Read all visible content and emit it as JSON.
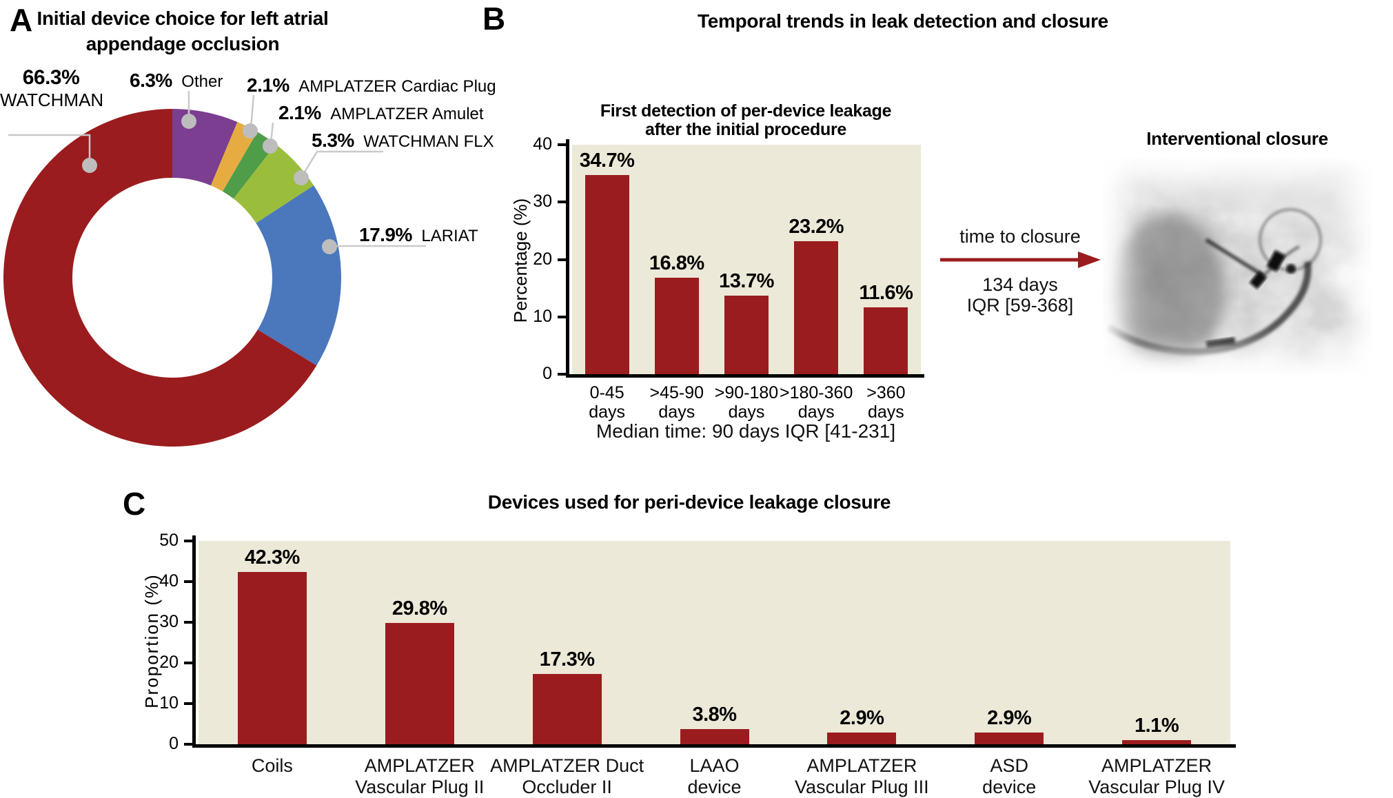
{
  "panelA": {
    "label": "A",
    "title_line1": "Initial device choice for left atrial",
    "title_line2": "appendage occlusion"
  },
  "panelB": {
    "label": "B",
    "title": "Temporal trends in leak detection and closure",
    "chart_title_line1": "First detection of per-device leakage",
    "chart_title_line2": "after the initial procedure",
    "ylabel": "Percentage (%)",
    "median_note": "Median time: 90 days IQR [41-231]",
    "arrow_label": "time to closure",
    "arrow_value_line1": "134 days",
    "arrow_value_line2": "IQR [59-368]",
    "image_title": "Interventional closure"
  },
  "panelC": {
    "label": "C",
    "title": "Devices used for peri-device leakage closure",
    "ylabel": "Proportion (%)"
  },
  "colors": {
    "bar_red": "#9B1C1E",
    "plot_beige": "#EDE9D8",
    "purple": "#7B3E91",
    "orange": "#E7AC41",
    "green": "#4F9D48",
    "yellow_green": "#9ABE3C",
    "blue": "#4B77BD",
    "leader_gray": "#C9C9C9",
    "dot_gray": "#BDBDBD"
  },
  "chart_data": [
    {
      "id": "initial-device-choice-donut",
      "type": "pie",
      "title": "Initial device choice for left atrial appendage occlusion",
      "donut": true,
      "start_angle": "12 o'clock",
      "direction": "clockwise",
      "slices": [
        {
          "label": "Other",
          "pct_label": "6.3%",
          "value": 6.3,
          "color": "#7B3E91"
        },
        {
          "label": "AMPLATZER Cardiac Plug",
          "pct_label": "2.1%",
          "value": 2.1,
          "color": "#E7AC41"
        },
        {
          "label": "AMPLATZER Amulet",
          "pct_label": "2.1%",
          "value": 2.1,
          "color": "#4F9D48"
        },
        {
          "label": "WATCHMAN FLX",
          "pct_label": "5.3%",
          "value": 5.3,
          "color": "#9ABE3C"
        },
        {
          "label": "LARIAT",
          "pct_label": "17.9%",
          "value": 17.9,
          "color": "#4B77BD"
        },
        {
          "label": "WATCHMAN",
          "pct_label": "66.3%",
          "value": 66.3,
          "color": "#9B1C1E"
        }
      ]
    },
    {
      "id": "first-detection-of-leakage",
      "type": "bar",
      "title": "First detection of per-device leakage after the initial procedure",
      "categories": [
        [
          "0-45",
          "days"
        ],
        [
          ">45-90",
          "days"
        ],
        [
          ">90-180",
          "days"
        ],
        [
          ">180-360",
          "days"
        ],
        [
          ">360",
          "days"
        ]
      ],
      "values": [
        34.7,
        16.8,
        13.7,
        23.2,
        11.6
      ],
      "value_labels": [
        "34.7%",
        "16.8%",
        "13.7%",
        "23.2%",
        "11.6%"
      ],
      "ylabel": "Percentage (%)",
      "ylim": [
        0,
        40
      ],
      "yticks": [
        0,
        10,
        20,
        30,
        40
      ],
      "bar_color": "#9B1C1E",
      "plot_bg": "#EDE9D8",
      "grid": false,
      "note": "Median time: 90 days IQR [41-231]"
    },
    {
      "id": "devices-used-for-closure",
      "type": "bar",
      "title": "Devices used for peri-device leakage closure",
      "categories": [
        [
          "Coils"
        ],
        [
          "AMPLATZER",
          "Vascular Plug II"
        ],
        [
          "AMPLATZER Duct",
          "Occluder II"
        ],
        [
          "LAAO",
          "device"
        ],
        [
          "AMPLATZER",
          "Vascular Plug III"
        ],
        [
          "ASD",
          "device"
        ],
        [
          "AMPLATZER",
          "Vascular Plug IV"
        ]
      ],
      "values": [
        42.3,
        29.8,
        17.3,
        3.8,
        2.9,
        2.9,
        1.1
      ],
      "value_labels": [
        "42.3%",
        "29.8%",
        "17.3%",
        "3.8%",
        "2.9%",
        "2.9%",
        "1.1%"
      ],
      "ylabel": "Proportion (%)",
      "ylim": [
        0,
        50
      ],
      "yticks": [
        0,
        10,
        20,
        30,
        40,
        50
      ],
      "bar_color": "#9B1C1E",
      "plot_bg": "#EDE9D8",
      "grid": false
    }
  ]
}
